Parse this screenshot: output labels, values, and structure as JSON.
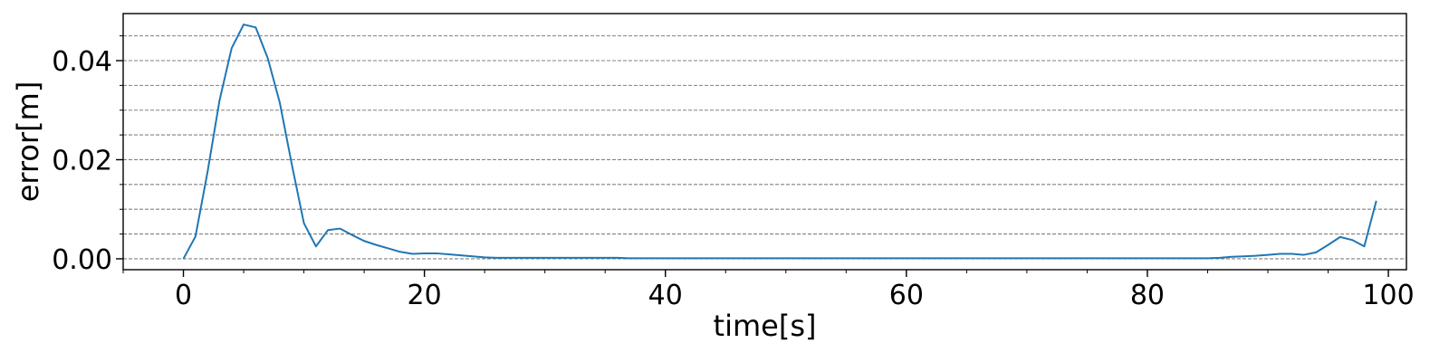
{
  "chart_data": {
    "type": "line",
    "title": "",
    "xlabel": "time[s]",
    "ylabel": "error[m]",
    "xlim": [
      -5,
      101.5
    ],
    "ylim": [
      -0.0022,
      0.0495
    ],
    "xticks": [
      0,
      20,
      40,
      60,
      80,
      100
    ],
    "xtick_labels": [
      "0",
      "20",
      "40",
      "60",
      "80",
      "100"
    ],
    "yticks": [
      0.0,
      0.02,
      0.04
    ],
    "ytick_labels": [
      "0.00",
      "0.02",
      "0.04"
    ],
    "x_minor_step": 5,
    "y_minor_step": 0.005,
    "grid": "horizontal dashed at major and minor y ticks",
    "legend": "none",
    "colors": {
      "line": "#1f77b4",
      "grid": "#808080",
      "axis": "#000000"
    },
    "series": [
      {
        "x": [
          0,
          1,
          2,
          3,
          4,
          5,
          6,
          7,
          8,
          9,
          10,
          11,
          12,
          13,
          14,
          15,
          16,
          17,
          18,
          19,
          20,
          21,
          22,
          23,
          24,
          25,
          26,
          27,
          28,
          29,
          30,
          31,
          32,
          33,
          34,
          35,
          36,
          37,
          38,
          39,
          40,
          41,
          42,
          43,
          44,
          45,
          46,
          47,
          48,
          49,
          50,
          51,
          52,
          53,
          54,
          55,
          56,
          57,
          58,
          59,
          60,
          61,
          62,
          63,
          64,
          65,
          66,
          67,
          68,
          69,
          70,
          71,
          72,
          73,
          74,
          75,
          76,
          77,
          78,
          79,
          80,
          81,
          82,
          83,
          84,
          85,
          86,
          87,
          88,
          89,
          90,
          91,
          92,
          93,
          94,
          95,
          96,
          97,
          98,
          99
        ],
        "y": [
          0.0,
          0.0045,
          0.0175,
          0.032,
          0.0425,
          0.0473,
          0.0467,
          0.0405,
          0.0315,
          0.019,
          0.0072,
          0.0025,
          0.0058,
          0.0061,
          0.0048,
          0.0036,
          0.0028,
          0.0021,
          0.0014,
          0.001,
          0.0011,
          0.0011,
          0.0009,
          0.0007,
          0.0005,
          0.0003,
          0.0002,
          0.0002,
          0.0002,
          0.0002,
          0.0002,
          0.0002,
          0.0002,
          0.0002,
          0.0002,
          0.0002,
          0.0002,
          0.0001,
          0.0001,
          0.0001,
          0.0001,
          0.0001,
          0.0001,
          0.0001,
          0.0001,
          0.0001,
          0.0001,
          0.0001,
          0.0001,
          0.0001,
          0.0001,
          0.0001,
          0.0001,
          0.0001,
          0.0001,
          0.0001,
          0.0001,
          0.0001,
          0.0001,
          0.0001,
          0.0001,
          0.0001,
          0.0001,
          0.0001,
          0.0001,
          0.0001,
          0.0001,
          0.0001,
          0.0001,
          0.0001,
          0.0001,
          0.0001,
          0.0001,
          0.0001,
          0.0001,
          0.0001,
          0.0001,
          0.0001,
          0.0001,
          0.0001,
          0.0001,
          0.0001,
          0.0001,
          0.0001,
          0.0001,
          0.0001,
          0.0002,
          0.0004,
          0.0005,
          0.0006,
          0.0008,
          0.001,
          0.001,
          0.0008,
          0.0013,
          0.0028,
          0.0044,
          0.0038,
          0.0025,
          0.0117
        ]
      }
    ]
  }
}
